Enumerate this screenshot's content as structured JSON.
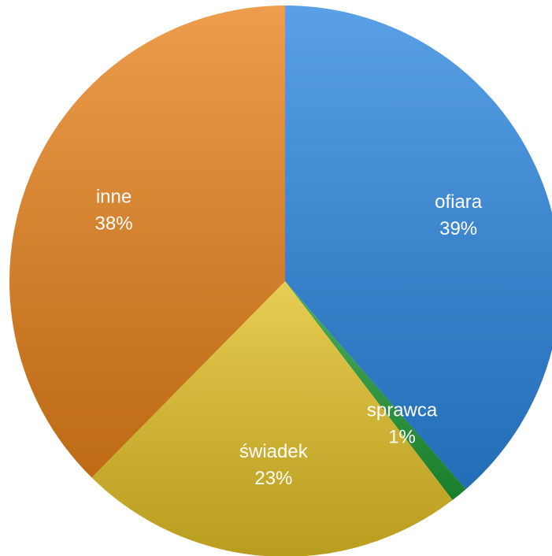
{
  "chart_data": {
    "type": "pie",
    "categories": [
      "ofiara",
      "sprawca",
      "świadek",
      "inne"
    ],
    "values": [
      39,
      1,
      23,
      38
    ],
    "value_labels": [
      "39%",
      "1%",
      "23%",
      "38%"
    ],
    "colors": [
      "#2b86e0",
      "#1f9a35",
      "#e2c025",
      "#e8821a"
    ]
  }
}
